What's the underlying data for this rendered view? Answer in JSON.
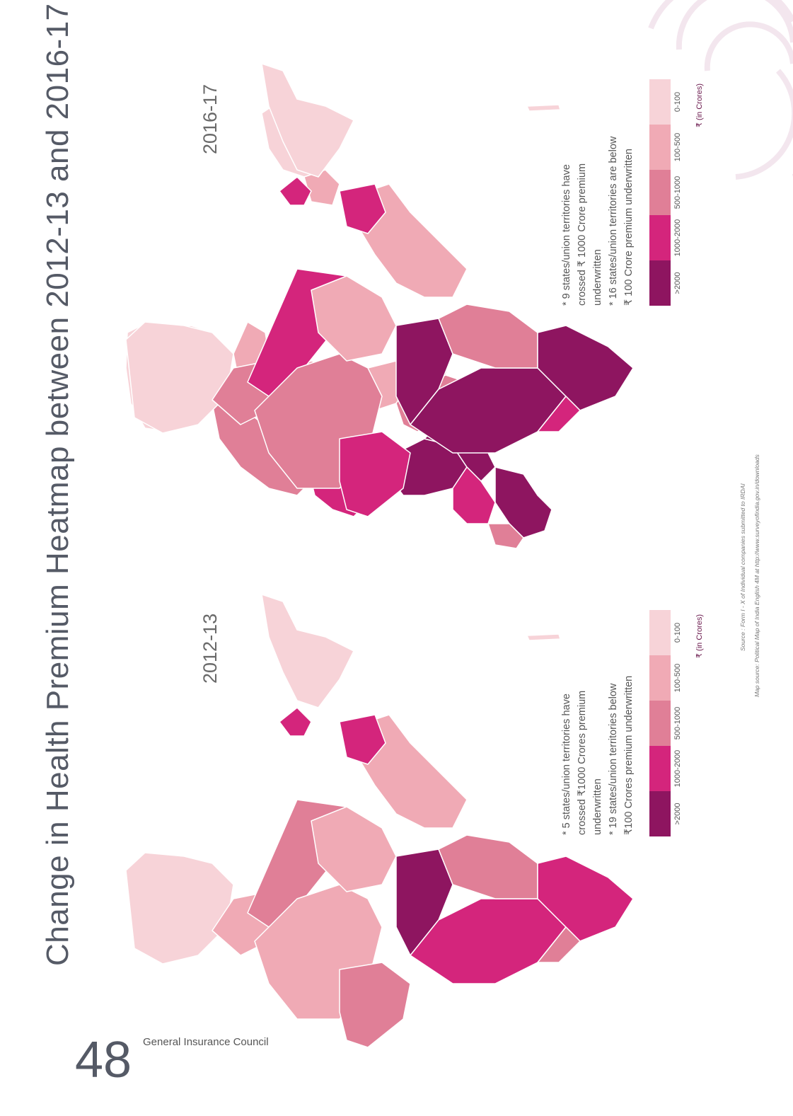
{
  "title": "Change in Health Premium Heatmap between 2012-13 and 2016-17",
  "page_number": "48",
  "organization": "General Insurance Council",
  "maps": [
    {
      "year": "2016-17",
      "notes": [
        "* 9 states/union territories have",
        "crossed ₹ 1000 Crore premium",
        "underwritten",
        "* 16 states/union territories are below",
        "₹ 100 Crore premium underwritten"
      ]
    },
    {
      "year": "2012-13",
      "notes": [
        "* 5 states/union territories have",
        "crossed ₹1000 Crores premium",
        "underwritten",
        "* 19 states/union territories below",
        "₹100 Crores premium underwritten"
      ]
    }
  ],
  "legend": {
    "categories": [
      ">2000",
      "1000-2000",
      "500-1000",
      "100-500",
      "0-100"
    ],
    "colors": [
      "#8e1560",
      "#d4257c",
      "#e07f97",
      "#f0aab5",
      "#f7d3d8"
    ],
    "unit": "₹ (in Crores)"
  },
  "source": "Source : Form I - X of Individual companies submitted to IRDAI",
  "map_source": "Map source: Political Map of India English 4M at http://www.surveyofindia.gov.in/downloads",
  "icons": {
    "rupee": "rupee-icon",
    "decoration": "concentric-arcs-decoration"
  }
}
